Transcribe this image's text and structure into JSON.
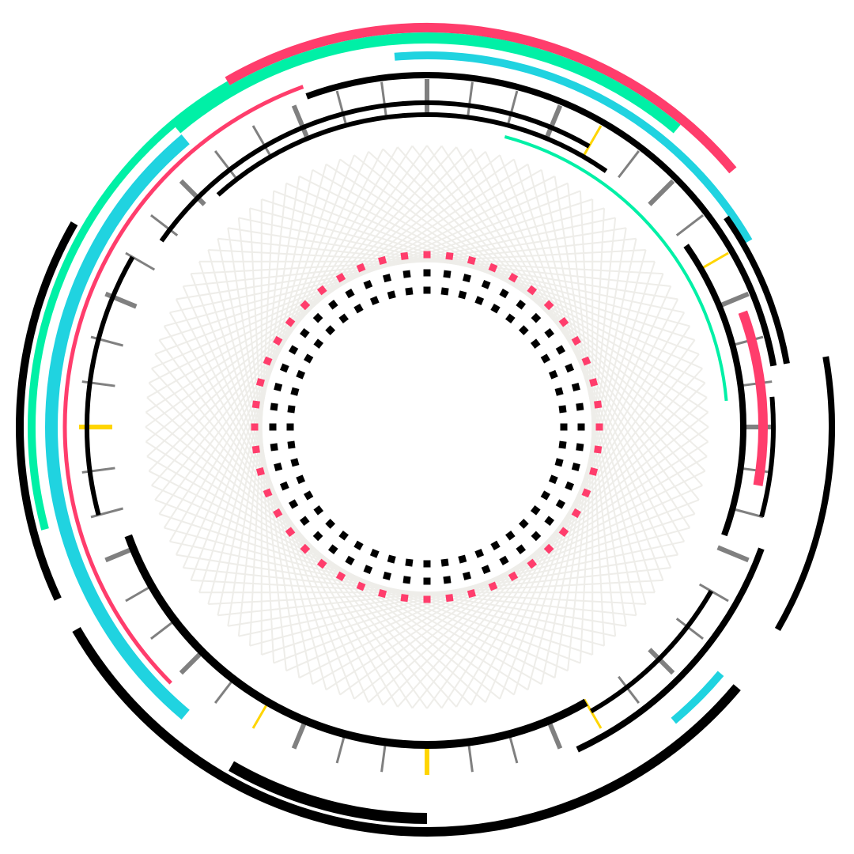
{
  "colors": {
    "background": "#ffffff",
    "chord": "#eeede9",
    "black": "#000000",
    "gray": "#808080",
    "yellow": "#ffd500",
    "red": "#ff3d6c",
    "teal": "#00f0a6",
    "cyan": "#20d3e0",
    "dot_red": "#ff0000",
    "dot_green": "#008000",
    "dot_blue": "#0000ff"
  },
  "chord_network": {
    "nodes": 120,
    "step": 36
  },
  "dot_rings": [
    {
      "name": "outer",
      "color": "red",
      "count": 48
    },
    {
      "name": "middle",
      "color": "green",
      "count": 48
    },
    {
      "name": "inner",
      "color": "blue",
      "count": 48
    }
  ],
  "arc_tracks": [
    {
      "color": "teal",
      "start": 15,
      "end": 85,
      "level": "inner"
    },
    {
      "color": "black",
      "start": 318,
      "end": 35,
      "level": "ring_a"
    },
    {
      "color": "black",
      "start": 305,
      "end": 30,
      "level": "ring_b"
    },
    {
      "color": "black",
      "start": 55,
      "end": 110,
      "level": "ring_c"
    },
    {
      "color": "black",
      "start": 120,
      "end": 150,
      "level": "ring_d"
    },
    {
      "color": "black",
      "start": 150,
      "end": 250,
      "level": "ring_e"
    },
    {
      "color": "black",
      "start": 255,
      "end": 300,
      "level": "ring_f"
    },
    {
      "color": "red",
      "start": 70,
      "end": 100,
      "level": "ring_g"
    },
    {
      "color": "black",
      "start": 340,
      "end": 80,
      "level": "ring_h"
    },
    {
      "color": "black",
      "start": 85,
      "end": 105,
      "level": "ring_i"
    },
    {
      "color": "black",
      "start": 110,
      "end": 155,
      "level": "ring_j"
    },
    {
      "color": "red",
      "start": 225,
      "end": 340,
      "level": "ring_k"
    },
    {
      "color": "cyan",
      "start": 355,
      "end": 60,
      "level": "ring_l"
    },
    {
      "color": "cyan",
      "start": 130,
      "end": 140,
      "level": "ring_m"
    },
    {
      "color": "cyan",
      "start": 220,
      "end": 320,
      "level": "ring_n"
    },
    {
      "color": "teal",
      "start": 320,
      "end": 40,
      "level": "ring_o"
    },
    {
      "color": "red",
      "start": 330,
      "end": 50,
      "level": "ring_p"
    },
    {
      "color": "teal",
      "start": 255,
      "end": 330,
      "level": "ring_q"
    },
    {
      "color": "black",
      "start": 80,
      "end": 120,
      "level": "ring_r"
    },
    {
      "color": "black",
      "start": 130,
      "end": 240,
      "level": "ring_s"
    },
    {
      "color": "black",
      "start": 245,
      "end": 300,
      "level": "ring_t"
    },
    {
      "color": "black",
      "start": 55,
      "end": 80,
      "level": "ring_u"
    },
    {
      "color": "black",
      "start": 180,
      "end": 210,
      "level": "ring_v"
    }
  ],
  "tick_marks": {
    "count": 48,
    "highlight": [
      4,
      8,
      20,
      24,
      28,
      36
    ]
  }
}
